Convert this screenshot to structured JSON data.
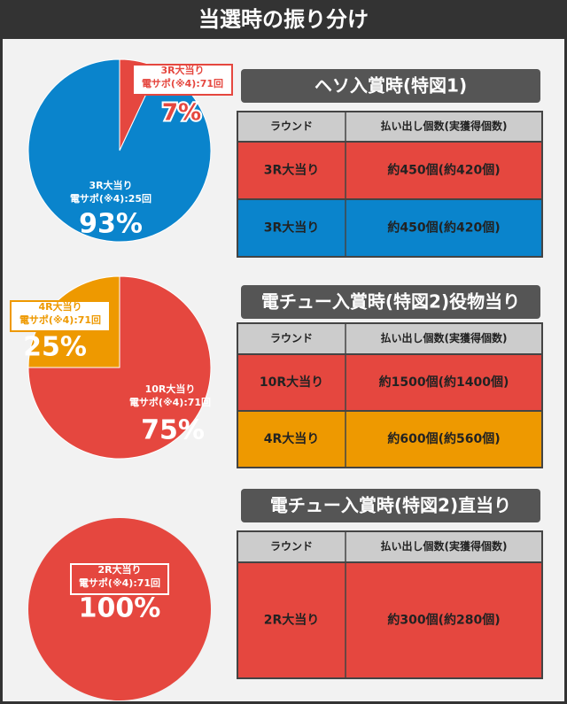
{
  "header": {
    "title": "当選時の振り分け"
  },
  "chart_data": [
    {
      "type": "pie",
      "categories": [
        "3R大当り",
        "3R大当り"
      ],
      "subcategories": [
        "電サポ(※4):71回",
        "電サポ(※4):25回"
      ],
      "values": [
        7,
        93
      ],
      "value_labels": [
        "7%",
        "93%"
      ],
      "colors": [
        "#e5473f",
        "#0a84cc"
      ]
    },
    {
      "type": "pie",
      "categories": [
        "10R大当り",
        "4R大当り"
      ],
      "subcategories": [
        "電サポ(※4):71回",
        "電サポ(※4):71回"
      ],
      "values": [
        75,
        25
      ],
      "value_labels": [
        "75%",
        "25%"
      ],
      "colors": [
        "#e5473f",
        "#ee9900"
      ]
    },
    {
      "type": "pie",
      "categories": [
        "2R大当り"
      ],
      "subcategories": [
        "電サポ(※4):71回"
      ],
      "values": [
        100
      ],
      "value_labels": [
        "100%"
      ],
      "colors": [
        "#e5473f"
      ]
    }
  ],
  "tables": [
    {
      "title": "ヘソ入賞時(特図1)",
      "columns": [
        "ラウンド",
        "払い出し個数(実獲得個数)"
      ],
      "rows": [
        [
          "3R大当り",
          "約450個(約420個)"
        ],
        [
          "3R大当り",
          "約450個(約420個)"
        ]
      ],
      "row_colors": [
        "#e5473f",
        "#0a84cc"
      ]
    },
    {
      "title": "電チュー入賞時(特図2)役物当り",
      "columns": [
        "ラウンド",
        "払い出し個数(実獲得個数)"
      ],
      "rows": [
        [
          "10R大当り",
          "約1500個(約1400個)"
        ],
        [
          "4R大当り",
          "約600個(約560個)"
        ]
      ],
      "row_colors": [
        "#e5473f",
        "#ee9900"
      ]
    },
    {
      "title": "電チュー入賞時(特図2)直当り",
      "columns": [
        "ラウンド",
        "払い出し個数(実獲得個数)"
      ],
      "rows": [
        [
          "2R大当り",
          "約300個(約280個)"
        ]
      ],
      "row_colors": [
        "#e5473f"
      ]
    }
  ]
}
